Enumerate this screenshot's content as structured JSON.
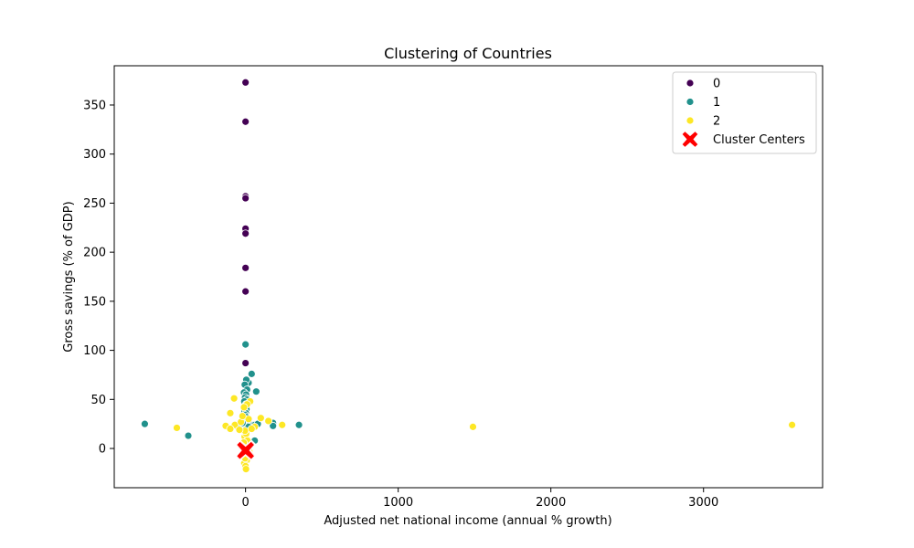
{
  "chart_data": {
    "type": "scatter",
    "title": "Clustering of Countries",
    "xlabel": "Adjusted net national income (annual % growth)",
    "ylabel": "Gross savings (% of GDP)",
    "xlim": [
      -860,
      3780
    ],
    "ylim": [
      -40,
      390
    ],
    "xticks": [
      0,
      1000,
      2000,
      3000
    ],
    "yticks": [
      0,
      50,
      100,
      150,
      200,
      250,
      300,
      350
    ],
    "grid": false,
    "legend_position": "top-right",
    "series": [
      {
        "name": "0",
        "color": "#440154",
        "points": [
          [
            0,
            373
          ],
          [
            0,
            333
          ],
          [
            0,
            257
          ],
          [
            0,
            255
          ],
          [
            0,
            224
          ],
          [
            0,
            219
          ],
          [
            0,
            184
          ],
          [
            0,
            160
          ],
          [
            0,
            87
          ],
          [
            2,
            45
          ],
          [
            -3,
            40
          ],
          [
            4,
            35
          ],
          [
            1,
            30
          ],
          [
            -2,
            28
          ],
          [
            3,
            22
          ],
          [
            0,
            18
          ]
        ]
      },
      {
        "name": "1",
        "color": "#21918c",
        "points": [
          [
            -660,
            25
          ],
          [
            -375,
            13
          ],
          [
            180,
            26
          ],
          [
            180,
            23
          ],
          [
            350,
            24
          ],
          [
            70,
            58
          ],
          [
            40,
            76
          ],
          [
            20,
            67
          ],
          [
            0,
            106
          ],
          [
            5,
            70
          ],
          [
            -5,
            65
          ],
          [
            10,
            60
          ],
          [
            -10,
            57
          ],
          [
            3,
            55
          ],
          [
            -3,
            52
          ],
          [
            8,
            50
          ],
          [
            -8,
            48
          ],
          [
            4,
            45
          ],
          [
            -4,
            43
          ],
          [
            6,
            40
          ],
          [
            -6,
            38
          ],
          [
            2,
            36
          ],
          [
            -2,
            34
          ],
          [
            5,
            32
          ],
          [
            -5,
            30
          ],
          [
            3,
            28
          ],
          [
            -3,
            27
          ],
          [
            7,
            26
          ],
          [
            -7,
            25
          ],
          [
            1,
            24
          ],
          [
            -1,
            23
          ],
          [
            4,
            22
          ],
          [
            -4,
            21
          ],
          [
            2,
            20
          ],
          [
            -2,
            18
          ],
          [
            0,
            16
          ],
          [
            3,
            14
          ],
          [
            -3,
            12
          ],
          [
            1,
            10
          ],
          [
            0,
            8
          ],
          [
            -30,
            25
          ],
          [
            -50,
            24
          ],
          [
            -60,
            23
          ],
          [
            30,
            25
          ],
          [
            50,
            24
          ],
          [
            60,
            24
          ],
          [
            80,
            25
          ],
          [
            -20,
            26
          ],
          [
            20,
            22
          ],
          [
            60,
            8
          ],
          [
            -15,
            5
          ],
          [
            15,
            3
          ]
        ]
      },
      {
        "name": "2",
        "color": "#fde725",
        "points": [
          [
            1490,
            22
          ],
          [
            3580,
            24
          ],
          [
            -450,
            21
          ],
          [
            -130,
            23
          ],
          [
            -100,
            36
          ],
          [
            -75,
            51
          ],
          [
            -70,
            24
          ],
          [
            -100,
            20
          ],
          [
            100,
            31
          ],
          [
            240,
            24
          ],
          [
            150,
            28
          ],
          [
            60,
            22
          ],
          [
            -30,
            27
          ],
          [
            30,
            48
          ],
          [
            10,
            45
          ],
          [
            -10,
            42
          ],
          [
            5,
            -5
          ],
          [
            -5,
            -8
          ],
          [
            8,
            -12
          ],
          [
            -8,
            -15
          ],
          [
            0,
            -18
          ],
          [
            3,
            -21
          ],
          [
            -3,
            -10
          ],
          [
            2,
            5
          ],
          [
            -2,
            2
          ],
          [
            6,
            10
          ],
          [
            -6,
            12
          ],
          [
            4,
            15
          ],
          [
            -4,
            18
          ],
          [
            40,
            20
          ],
          [
            -40,
            19
          ],
          [
            20,
            30
          ],
          [
            -20,
            33
          ],
          [
            12,
            8
          ],
          [
            -12,
            6
          ],
          [
            25,
            -3
          ]
        ]
      }
    ],
    "cluster_centers": {
      "name": "Cluster Centers",
      "color": "#ff0000",
      "points": [
        [
          2,
          -1
        ],
        [
          -1,
          -3
        ],
        [
          0,
          -2
        ]
      ]
    }
  }
}
